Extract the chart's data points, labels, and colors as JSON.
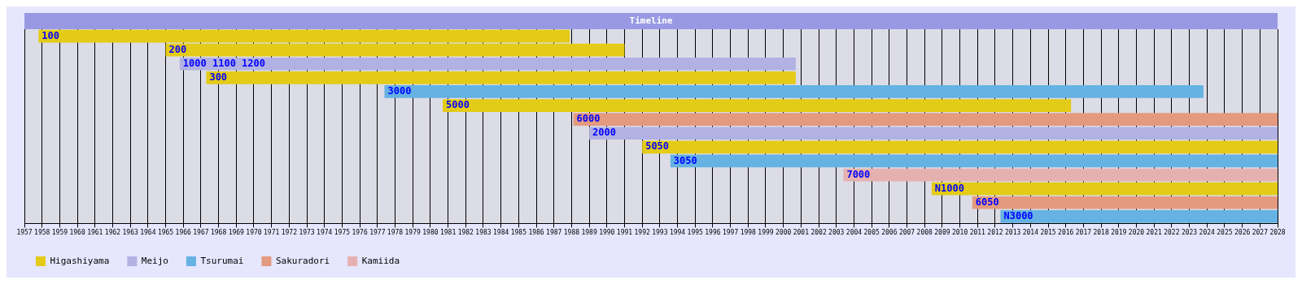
{
  "chart_data": {
    "type": "bar",
    "title": "Timeline",
    "orientation": "horizontal",
    "categories": [
      "100",
      "200",
      "1000 1100 1200",
      "300",
      "3000",
      "5000",
      "6000",
      "2000",
      "5050",
      "3050",
      "7000",
      "N1000",
      "6050",
      "N3000"
    ],
    "series": [
      {
        "name": "Higashiyama",
        "color": "#e3cb17",
        "base": [
          1957.8,
          1965.0,
          null,
          1967.3,
          null,
          1980.7,
          null,
          null,
          1992.0,
          null,
          null,
          2008.4,
          null,
          null
        ],
        "values": [
          30.1,
          26.0,
          null,
          33.4,
          null,
          35.6,
          null,
          null,
          36.0,
          null,
          null,
          19.6,
          null,
          null
        ]
      },
      {
        "name": "Meijo",
        "color": "#b1b1e3",
        "base": [
          null,
          null,
          1965.8,
          null,
          null,
          null,
          null,
          1989.0,
          null,
          null,
          null,
          null,
          null,
          null
        ],
        "values": [
          null,
          null,
          34.9,
          null,
          null,
          null,
          null,
          39.0,
          null,
          null,
          null,
          null,
          null,
          null
        ]
      },
      {
        "name": "Tsurumai",
        "color": "#65b2e3",
        "base": [
          null,
          null,
          null,
          null,
          1977.4,
          null,
          null,
          null,
          null,
          1993.6,
          null,
          null,
          null,
          2012.3
        ],
        "values": [
          null,
          null,
          null,
          null,
          46.4,
          null,
          null,
          null,
          null,
          34.4,
          null,
          null,
          null,
          15.7
        ]
      },
      {
        "name": "Sakuradori",
        "color": "#e49a7e",
        "base": [
          null,
          null,
          null,
          null,
          null,
          null,
          1988.1,
          null,
          null,
          null,
          null,
          null,
          2010.7,
          null
        ],
        "values": [
          null,
          null,
          null,
          null,
          null,
          null,
          39.9,
          null,
          null,
          null,
          null,
          null,
          17.3,
          null
        ]
      },
      {
        "name": "Kamiida",
        "color": "#e5b1b0",
        "base": [
          null,
          null,
          null,
          null,
          null,
          null,
          null,
          null,
          null,
          null,
          2003.4,
          null,
          null,
          null
        ],
        "values": [
          null,
          null,
          null,
          null,
          null,
          null,
          null,
          null,
          null,
          null,
          24.6,
          null,
          null,
          null
        ]
      }
    ],
    "xlim": [
      1957,
      2028
    ],
    "xticks": [
      1957,
      1958,
      1959,
      1960,
      1961,
      1962,
      1963,
      1964,
      1965,
      1966,
      1967,
      1968,
      1969,
      1970,
      1971,
      1972,
      1973,
      1974,
      1975,
      1976,
      1977,
      1978,
      1979,
      1980,
      1981,
      1982,
      1983,
      1984,
      1985,
      1986,
      1987,
      1988,
      1989,
      1990,
      1991,
      1992,
      1993,
      1994,
      1995,
      1996,
      1997,
      1998,
      1999,
      2000,
      2001,
      2002,
      2003,
      2004,
      2005,
      2006,
      2007,
      2008,
      2009,
      2010,
      2011,
      2012,
      2013,
      2014,
      2015,
      2016,
      2017,
      2018,
      2019,
      2020,
      2021,
      2022,
      2023,
      2024,
      2025,
      2026,
      2027,
      2028
    ],
    "grid": "x",
    "legend": "bottom left",
    "tick_labels": "x"
  }
}
